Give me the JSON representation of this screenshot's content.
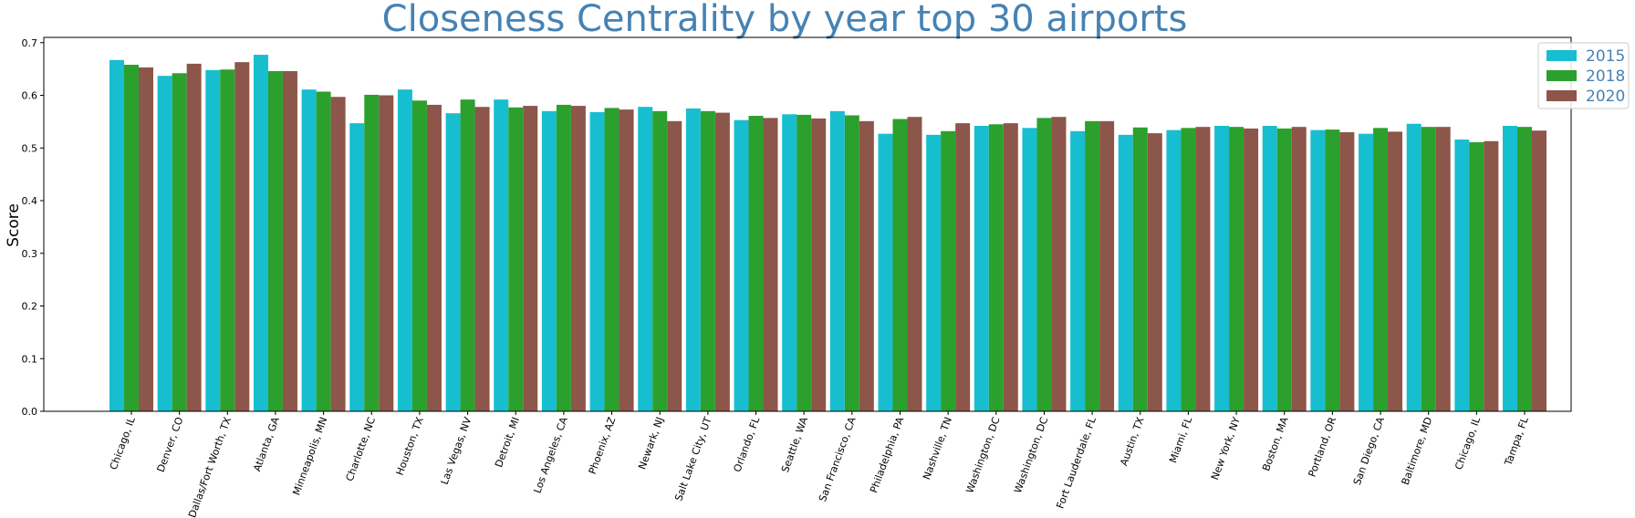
{
  "chart_data": {
    "type": "bar",
    "title": "Closeness Centrality by year top 30 airports",
    "xlabel": "",
    "ylabel": "Score",
    "ylim": [
      0,
      0.71
    ],
    "yticks": [
      "0.0",
      "0.1",
      "0.2",
      "0.3",
      "0.4",
      "0.5",
      "0.6",
      "0.7"
    ],
    "grid": false,
    "legend_position": "top-right",
    "categories": [
      "Chicago, IL",
      "Denver, CO",
      "Dallas/Fort Worth, TX",
      "Atlanta, GA",
      "Minneapolis, MN",
      "Charlotte, NC",
      "Houston, TX",
      "Las Vegas, NV",
      "Detroit, MI",
      "Los Angeles, CA",
      "Phoenix, AZ",
      "Newark, NJ",
      "Salt Lake City, UT",
      "Orlando, FL",
      "Seattle, WA",
      "San Francisco, CA",
      "Philadelphia, PA",
      "Nashville, TN",
      "Washington, DC",
      "Washington, DC",
      "Fort Lauderdale, FL",
      "Austin, TX",
      "Miami, FL",
      "New York, NY",
      "Boston, MA",
      "Portland, OR",
      "San Diego, CA",
      "Baltimore, MD",
      "Chicago, IL",
      "Tampa, FL"
    ],
    "series": [
      {
        "name": "2015",
        "color": "#17becf",
        "values": [
          0.667,
          0.637,
          0.648,
          0.677,
          0.611,
          0.547,
          0.611,
          0.566,
          0.592,
          0.57,
          0.568,
          0.578,
          0.575,
          0.553,
          0.564,
          0.57,
          0.527,
          0.525,
          0.542,
          0.538,
          0.532,
          0.525,
          0.534,
          0.542,
          0.542,
          0.534,
          0.527,
          0.546,
          0.516,
          0.542
        ]
      },
      {
        "name": "2018",
        "color": "#2ca02c",
        "values": [
          0.658,
          0.642,
          0.649,
          0.646,
          0.607,
          0.601,
          0.59,
          0.592,
          0.577,
          0.582,
          0.576,
          0.57,
          0.57,
          0.561,
          0.563,
          0.562,
          0.555,
          0.532,
          0.545,
          0.557,
          0.551,
          0.539,
          0.538,
          0.54,
          0.537,
          0.535,
          0.538,
          0.54,
          0.511,
          0.54
        ]
      },
      {
        "name": "2020",
        "color": "#8c564b",
        "values": [
          0.653,
          0.66,
          0.663,
          0.646,
          0.597,
          0.6,
          0.582,
          0.578,
          0.58,
          0.58,
          0.573,
          0.551,
          0.567,
          0.557,
          0.556,
          0.551,
          0.559,
          0.547,
          0.547,
          0.559,
          0.551,
          0.528,
          0.54,
          0.537,
          0.54,
          0.53,
          0.531,
          0.54,
          0.513,
          0.533
        ]
      }
    ]
  }
}
